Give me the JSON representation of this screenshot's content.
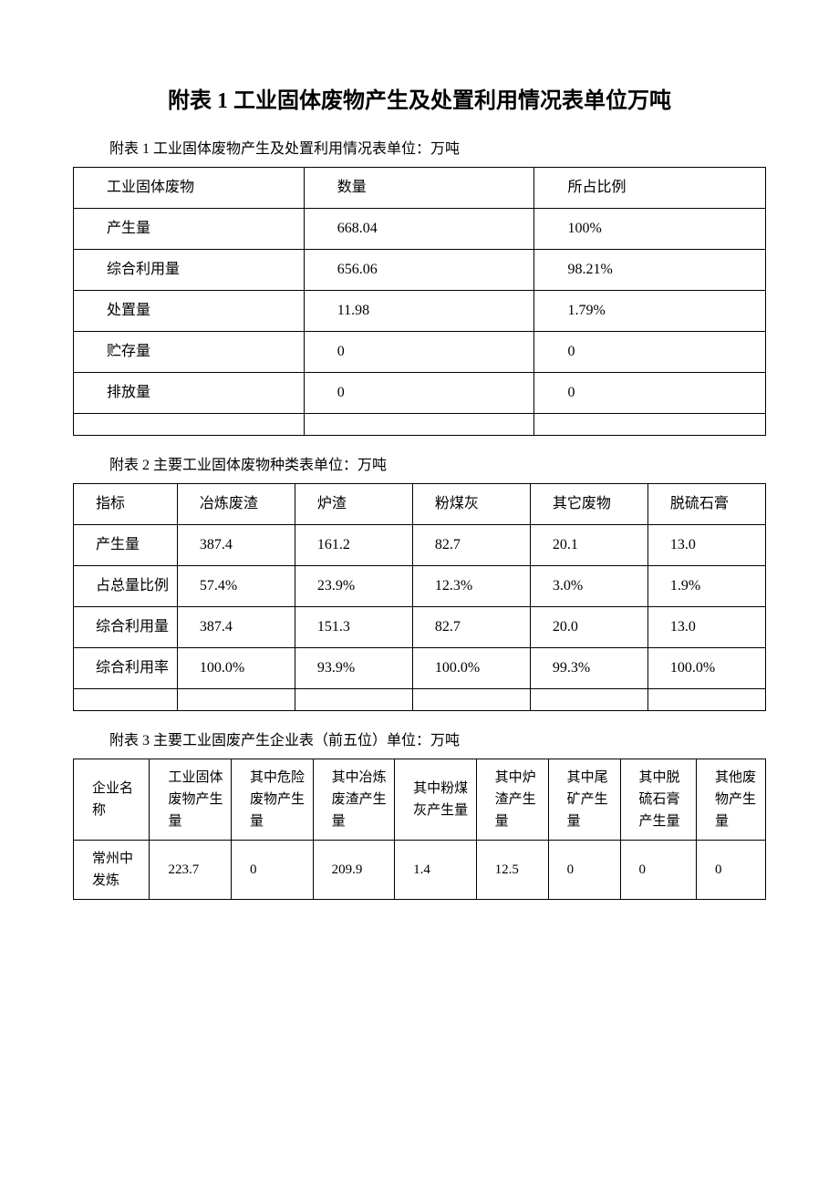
{
  "page_title": "附表 1 工业固体废物产生及处置利用情况表单位万吨",
  "table1": {
    "subtitle": "附表 1 工业固体废物产生及处置利用情况表单位：万吨",
    "headers": [
      "工业固体废物",
      "数量",
      "所占比例"
    ],
    "rows": [
      [
        "产生量",
        "668.04",
        "100%"
      ],
      [
        "综合利用量",
        "656.06",
        "98.21%"
      ],
      [
        "处置量",
        "11.98",
        "1.79%"
      ],
      [
        "贮存量",
        "0",
        "0"
      ],
      [
        "排放量",
        "0",
        "0"
      ]
    ],
    "col_widths": [
      "33.3%",
      "33.3%",
      "33.4%"
    ]
  },
  "table2": {
    "subtitle": "附表 2 主要工业固体废物种类表单位：万吨",
    "headers": [
      "指标",
      "冶炼废渣",
      "炉渣",
      "粉煤灰",
      "其它废物",
      "脱硫石膏"
    ],
    "rows": [
      [
        "产生量",
        "387.4",
        "161.2",
        "82.7",
        "20.1",
        "13.0"
      ],
      [
        "占总量比例",
        "57.4%",
        "23.9%",
        "12.3%",
        "3.0%",
        "1.9%"
      ],
      [
        "综合利用量",
        "387.4",
        "151.3",
        "82.7",
        "20.0",
        "13.0"
      ],
      [
        "综合利用率",
        "100.0%",
        "93.9%",
        "100.0%",
        "99.3%",
        "100.0%"
      ]
    ],
    "col_widths": [
      "15%",
      "17%",
      "17%",
      "17%",
      "17%",
      "17%"
    ]
  },
  "table3": {
    "subtitle": "附表 3 主要工业固废产生企业表（前五位）单位：万吨",
    "headers": [
      "企业名称",
      "工业固体废物产生量",
      "其中危险废物产生量",
      "其中冶炼废渣产生量",
      "其中粉煤灰产生量",
      "其中炉渣产生量",
      "其中尾矿产生量",
      "其中脱硫石膏产生量",
      "其他废物产生量"
    ],
    "rows": [
      [
        "常州中发炼",
        "223.7",
        "0",
        "209.9",
        "1.4",
        "12.5",
        "0",
        "0",
        "0"
      ]
    ],
    "col_widths": [
      "11%",
      "11.8%",
      "11.8%",
      "11.8%",
      "11.8%",
      "10.4%",
      "10.4%",
      "11%",
      "10%"
    ]
  }
}
